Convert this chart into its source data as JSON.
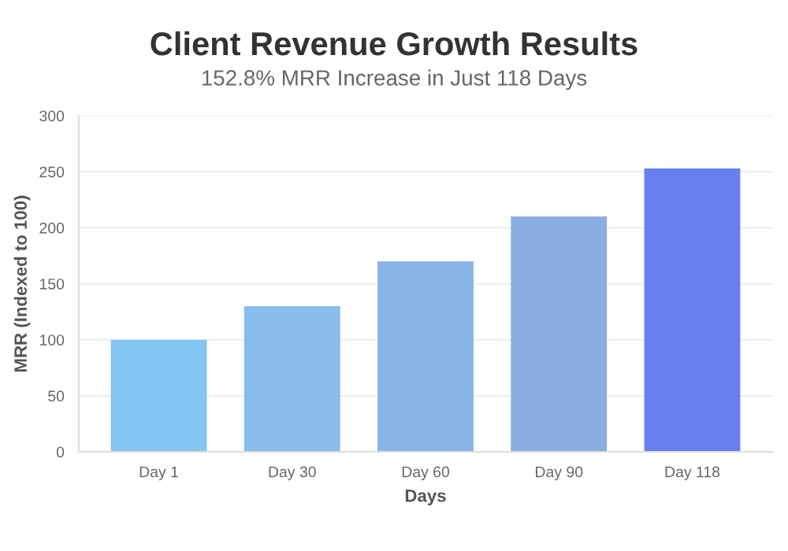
{
  "chart_data": {
    "type": "bar",
    "title": "Client Revenue Growth Results",
    "subtitle": "152.8% MRR Increase in Just 118 Days",
    "xlabel": "Days",
    "ylabel": "MRR (Indexed to 100)",
    "categories": [
      "Day 1",
      "Day 30",
      "Day 60",
      "Day 90",
      "Day 118"
    ],
    "values": [
      100,
      130,
      170,
      210,
      253
    ],
    "colors": [
      "#84c6f2",
      "#88bdec",
      "#89b4e6",
      "#8aaee2",
      "#6880ef"
    ],
    "ylim": [
      0,
      300
    ],
    "yticks": [
      0,
      50,
      100,
      150,
      200,
      250,
      300
    ],
    "grid": "y"
  }
}
